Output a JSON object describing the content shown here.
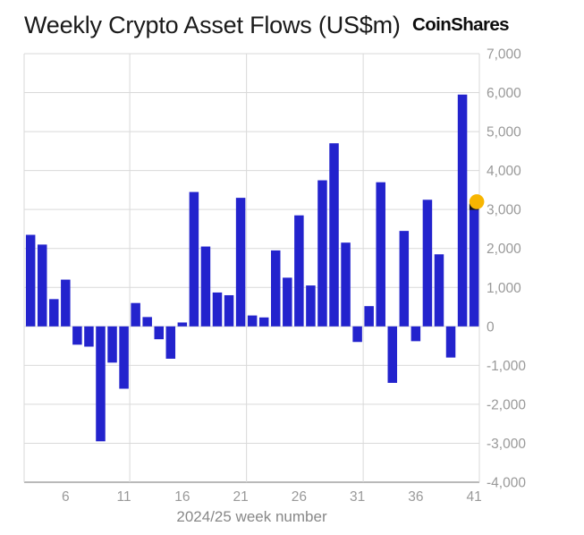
{
  "header": {
    "title": "Weekly Crypto Asset Flows (US$m)",
    "logo": "CoinShares"
  },
  "chart_data": {
    "type": "bar",
    "title": "Weekly Crypto Asset Flows (US$m)",
    "xlabel": "2024/25 week number",
    "ylabel": "",
    "x": [
      3,
      4,
      5,
      6,
      7,
      8,
      9,
      10,
      11,
      12,
      13,
      14,
      15,
      16,
      17,
      18,
      19,
      20,
      21,
      22,
      23,
      24,
      25,
      26,
      27,
      28,
      29,
      30,
      31,
      32,
      33,
      34,
      35,
      36,
      37,
      38,
      39,
      40,
      41
    ],
    "values": [
      2350,
      2100,
      700,
      1200,
      -470,
      -520,
      -2950,
      -930,
      -1600,
      600,
      240,
      -330,
      -830,
      100,
      3450,
      2050,
      870,
      800,
      3300,
      280,
      230,
      1950,
      1250,
      2850,
      1050,
      3750,
      4700,
      2150,
      -400,
      520,
      3700,
      -1450,
      2450,
      -380,
      3250,
      1850,
      -800,
      5950,
      3150
    ],
    "x_ticks": [
      6,
      11,
      16,
      21,
      26,
      31,
      36,
      41
    ],
    "y_ticks": [
      7000,
      6000,
      5000,
      4000,
      3000,
      2000,
      1000,
      0,
      -1000,
      -2000,
      -3000,
      -4000
    ],
    "y_tick_labels": [
      "7,000",
      "6,000",
      "5,000",
      "4,000",
      "3,000",
      "2,000",
      "1,000",
      "0",
      "-1,000",
      "-2,000",
      "-3,000",
      "-4,000"
    ],
    "ylim": [
      -4000,
      7000
    ],
    "xlim": [
      2.45,
      41.45
    ],
    "grid": true,
    "grid_x_weeks": [
      11.5,
      21.5,
      31.5
    ],
    "legend": "none",
    "bar_color": "#2323CD",
    "highlight_dot": {
      "x": 41,
      "value": 3200,
      "color": "#F7B500"
    },
    "grid_color": "#D9D9D9",
    "axis_color": "#8F8F8F",
    "tick_label_color": "#999999",
    "axis_title_color": "#888888"
  }
}
